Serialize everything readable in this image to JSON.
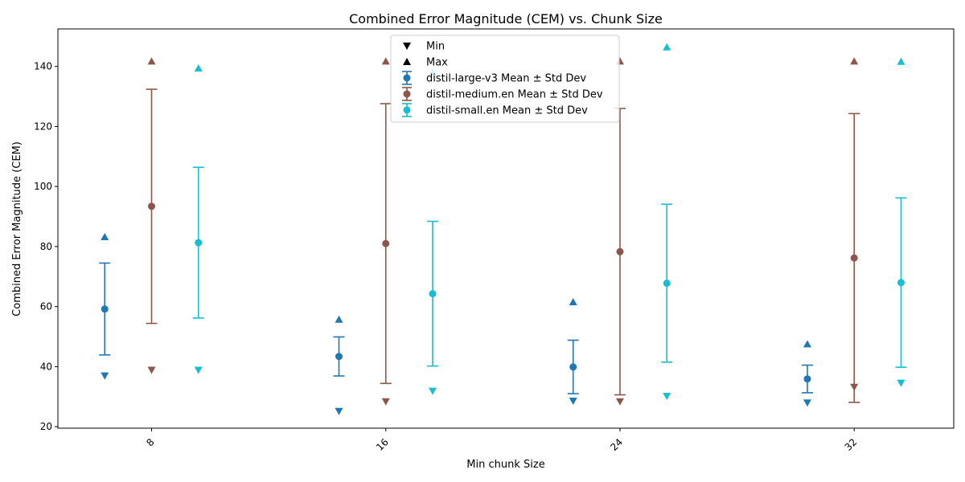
{
  "chart_data": {
    "type": "scatter",
    "title": "Combined Error Magnitude (CEM) vs. Chunk Size",
    "xlabel": "Min chunk Size",
    "ylabel": "Combined Error Magnitude (CEM)",
    "xlim": [
      4.8,
      35.4
    ],
    "ylim": [
      19.5,
      152.5
    ],
    "x_ticks": [
      8,
      16,
      24,
      32
    ],
    "x_tick_labels": [
      "8",
      "16",
      "24",
      "32"
    ],
    "y_ticks": [
      20,
      40,
      60,
      80,
      100,
      120,
      140
    ],
    "y_tick_labels": [
      "20",
      "40",
      "60",
      "80",
      "100",
      "120",
      "140"
    ],
    "grid": false,
    "legend_position": "top-center",
    "legend": [
      {
        "key": "min",
        "label": "Min",
        "marker": "triangle-down",
        "color": "#000000"
      },
      {
        "key": "max",
        "label": "Max",
        "marker": "triangle-up",
        "color": "#000000"
      },
      {
        "key": "large",
        "label": "distil-large-v3 Mean ± Std Dev",
        "marker": "errorbar",
        "color": "#1f77b4"
      },
      {
        "key": "medium",
        "label": "distil-medium.en Mean ± Std Dev",
        "marker": "errorbar",
        "color": "#8c564b"
      },
      {
        "key": "small",
        "label": "distil-small.en Mean ± Std Dev",
        "marker": "errorbar",
        "color": "#17becf"
      }
    ],
    "series": [
      {
        "name": "distil-large-v3",
        "color": "#1f77b4",
        "x": [
          6.4,
          14.4,
          22.4,
          30.4
        ],
        "mean": [
          59.2,
          43.4,
          39.9,
          35.9
        ],
        "std": [
          15.3,
          6.5,
          8.9,
          4.6
        ],
        "min": [
          37.0,
          25.2,
          28.6,
          28.0
        ],
        "max": [
          83.2,
          55.7,
          61.5,
          47.5
        ]
      },
      {
        "name": "distil-medium.en",
        "color": "#8c564b",
        "x": [
          8.0,
          16.0,
          24.0,
          32.0
        ],
        "mean": [
          93.4,
          81.0,
          78.3,
          76.2
        ],
        "std": [
          39.0,
          46.6,
          47.7,
          48.1
        ],
        "min": [
          38.9,
          28.4,
          28.4,
          33.2
        ],
        "max": [
          141.7,
          141.7,
          141.7,
          141.7
        ]
      },
      {
        "name": "distil-small.en",
        "color": "#17becf",
        "x": [
          9.6,
          17.6,
          25.6,
          33.6
        ],
        "mean": [
          81.3,
          64.3,
          67.8,
          68.0
        ],
        "std": [
          25.1,
          24.1,
          26.3,
          28.2
        ],
        "min": [
          38.9,
          31.9,
          30.2,
          34.6
        ],
        "max": [
          139.4,
          137.9,
          146.4,
          141.6
        ]
      }
    ]
  }
}
